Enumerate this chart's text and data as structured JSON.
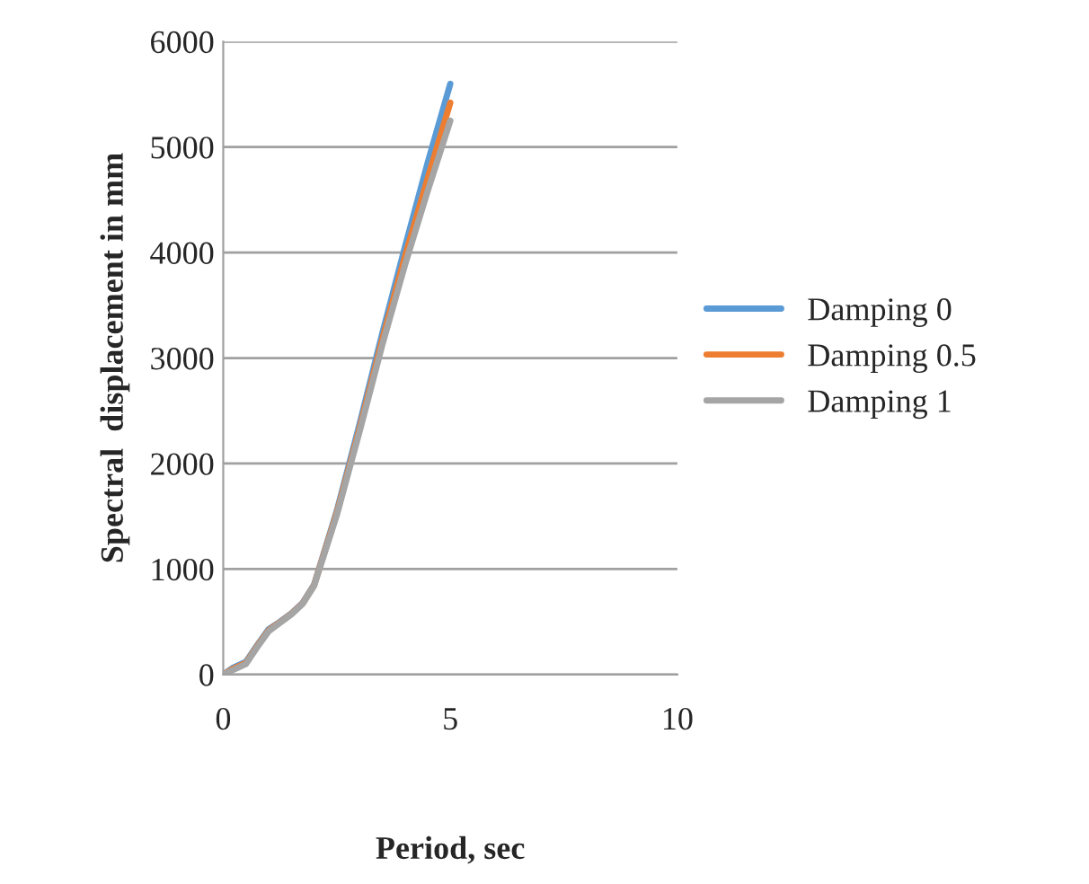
{
  "chart_data": {
    "type": "line",
    "xlabel": "Period, sec",
    "ylabel": "Spectral  displacement in mm",
    "xlim": [
      0,
      10
    ],
    "xticks": [
      0,
      5,
      10
    ],
    "ylim": [
      0,
      6000
    ],
    "yticks": [
      0,
      1000,
      2000,
      3000,
      4000,
      5000,
      6000
    ],
    "grid": "y",
    "legend": "right",
    "marker": "none",
    "line_style": "solid",
    "x": [
      0,
      0.2,
      0.5,
      0.75,
      1,
      1.25,
      1.5,
      1.75,
      2,
      2.5,
      3,
      3.5,
      4,
      4.5,
      5
    ],
    "series": [
      {
        "name": "Damping 0",
        "color": "#5b9bd5",
        "values": [
          0,
          60,
          120,
          280,
          430,
          500,
          580,
          680,
          850,
          1550,
          2370,
          3230,
          4050,
          4850,
          5600
        ]
      },
      {
        "name": "Damping 0.5",
        "color": "#ed7d31",
        "values": [
          0,
          50,
          110,
          270,
          420,
          495,
          575,
          675,
          845,
          1530,
          2330,
          3170,
          3960,
          4700,
          5420
        ]
      },
      {
        "name": "Damping 1",
        "color": "#a5a5a5",
        "values": [
          0,
          40,
          100,
          260,
          410,
          490,
          570,
          670,
          840,
          1510,
          2300,
          3120,
          3880,
          4580,
          5250
        ]
      }
    ]
  }
}
